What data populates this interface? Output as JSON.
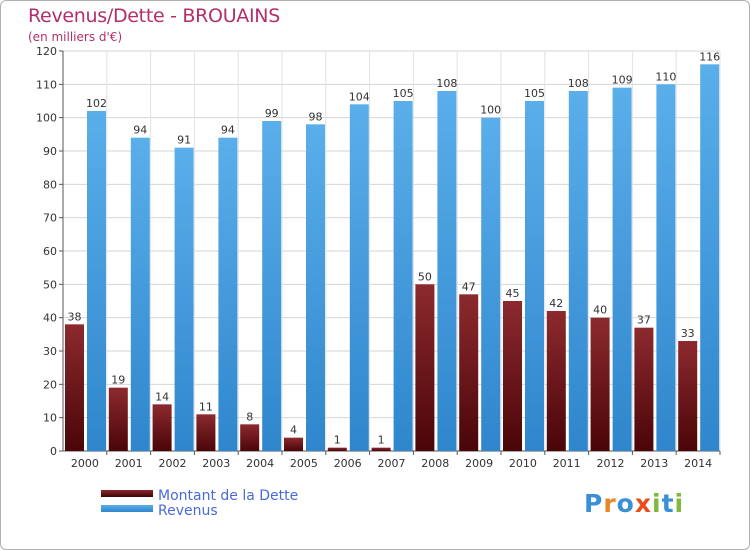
{
  "header": {
    "title": "Revenus/Dette - BROUAINS",
    "subtitle": "(en milliers d'€)"
  },
  "legend": {
    "items": [
      {
        "label": "Montant de la Dette",
        "color": "#7a1418"
      },
      {
        "label": "Revenus",
        "color": "#4da6e6"
      }
    ]
  },
  "logo": {
    "text": "Proxiti",
    "letters": [
      {
        "ch": "P",
        "color": "#3a8fd6"
      },
      {
        "ch": "r",
        "color": "#e8862a"
      },
      {
        "ch": "o",
        "color": "#3a8fd6"
      },
      {
        "ch": "x",
        "color": "#e84d1a"
      },
      {
        "ch": "i",
        "color": "#7fb83a"
      },
      {
        "ch": "t",
        "color": "#3a8fd6"
      },
      {
        "ch": "i",
        "color": "#7fb83a"
      }
    ]
  },
  "chart_data": {
    "type": "bar",
    "title": "Revenus/Dette - BROUAINS",
    "subtitle": "(en milliers d'€)",
    "xlabel": "",
    "ylabel": "",
    "ylim": [
      0,
      120
    ],
    "yticks": [
      0,
      10,
      20,
      30,
      40,
      50,
      60,
      70,
      80,
      90,
      100,
      110,
      120
    ],
    "grid": true,
    "legend_position": "bottom-left",
    "categories": [
      "2000",
      "2001",
      "2002",
      "2003",
      "2004",
      "2005",
      "2006",
      "2007",
      "2008",
      "2009",
      "2010",
      "2011",
      "2012",
      "2013",
      "2014"
    ],
    "series": [
      {
        "name": "Montant de la Dette",
        "color": "#7a1418",
        "values": [
          38,
          19,
          14,
          11,
          8,
          4,
          1,
          1,
          50,
          47,
          45,
          42,
          40,
          37,
          33
        ]
      },
      {
        "name": "Revenus",
        "color": "#4da6e6",
        "values": [
          102,
          94,
          91,
          94,
          99,
          98,
          104,
          105,
          108,
          100,
          105,
          108,
          109,
          110,
          116
        ]
      }
    ]
  }
}
